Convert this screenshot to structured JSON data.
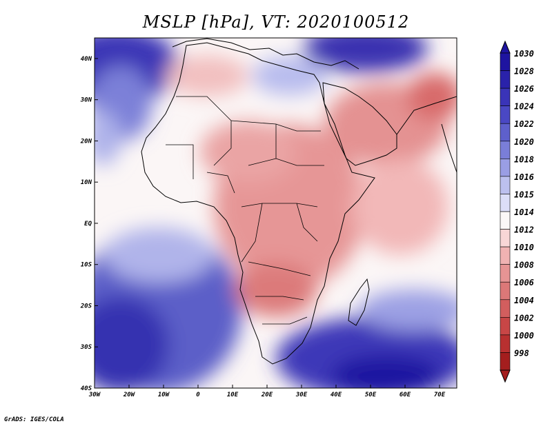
{
  "title": "MSLP [hPa], VT: 2020100512",
  "credit": "GrADS: IGES/COLA",
  "map": {
    "lon_range": [
      -30,
      75
    ],
    "lat_range": [
      -40,
      45
    ],
    "lon_ticks": [
      {
        "value": -30,
        "label": "30W"
      },
      {
        "value": -20,
        "label": "20W"
      },
      {
        "value": -10,
        "label": "10W"
      },
      {
        "value": 0,
        "label": "0"
      },
      {
        "value": 10,
        "label": "10E"
      },
      {
        "value": 20,
        "label": "20E"
      },
      {
        "value": 30,
        "label": "30E"
      },
      {
        "value": 40,
        "label": "40E"
      },
      {
        "value": 50,
        "label": "50E"
      },
      {
        "value": 60,
        "label": "60E"
      },
      {
        "value": 70,
        "label": "70E"
      }
    ],
    "lat_ticks": [
      {
        "value": 40,
        "label": "40N"
      },
      {
        "value": 30,
        "label": "30N"
      },
      {
        "value": 20,
        "label": "20N"
      },
      {
        "value": 10,
        "label": "10N"
      },
      {
        "value": 0,
        "label": "EQ"
      },
      {
        "value": -10,
        "label": "10S"
      },
      {
        "value": -20,
        "label": "20S"
      },
      {
        "value": -30,
        "label": "30S"
      },
      {
        "value": -40,
        "label": "40S"
      }
    ]
  },
  "colorbar": {
    "levels": [
      {
        "label": "1030",
        "color": "#1e14a0"
      },
      {
        "label": "1028",
        "color": "#2a22aa"
      },
      {
        "label": "1026",
        "color": "#3a34b8"
      },
      {
        "label": "1024",
        "color": "#4a48c4"
      },
      {
        "label": "1022",
        "color": "#5e60cc"
      },
      {
        "label": "1020",
        "color": "#7a7ed8"
      },
      {
        "label": "1018",
        "color": "#9a9ee4"
      },
      {
        "label": "1016",
        "color": "#bcc0ee"
      },
      {
        "label": "1015",
        "color": "#dcdef8"
      },
      {
        "label": "1014",
        "color": "#fbf7f7"
      },
      {
        "label": "1012",
        "color": "#f8d6d6"
      },
      {
        "label": "1010",
        "color": "#f0b2b2"
      },
      {
        "label": "1008",
        "color": "#e69494"
      },
      {
        "label": "1006",
        "color": "#dc7878"
      },
      {
        "label": "1004",
        "color": "#d25e5e"
      },
      {
        "label": "1002",
        "color": "#c84646"
      },
      {
        "label": "1000",
        "color": "#b83030"
      },
      {
        "label": "998",
        "color": "#a41e1e"
      }
    ]
  }
}
